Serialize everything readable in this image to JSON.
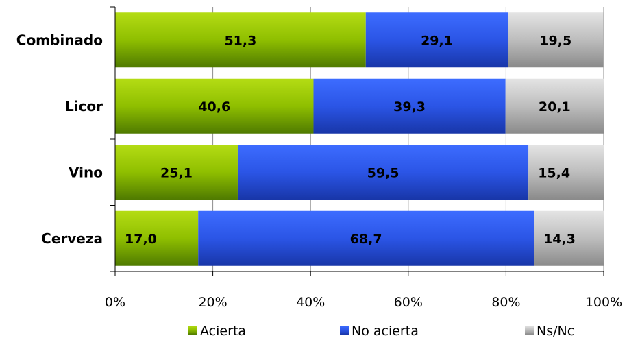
{
  "chart_data": {
    "type": "bar",
    "orientation": "horizontal",
    "stacked": true,
    "categories": [
      "Combinado",
      "Licor",
      "Vino",
      "Cerveza"
    ],
    "series": [
      {
        "name": "Acierta",
        "values": [
          51.3,
          40.6,
          25.1,
          17.0
        ],
        "labels": [
          "51,3",
          "40,6",
          "25,1",
          "17,0"
        ],
        "color": "#8fbf00"
      },
      {
        "name": "No acierta",
        "values": [
          29.1,
          39.3,
          59.5,
          68.7
        ],
        "labels": [
          "29,1",
          "39,3",
          "59,5",
          "68,7"
        ],
        "color": "#2b55e6"
      },
      {
        "name": "Ns/Nc",
        "values": [
          19.5,
          20.1,
          15.4,
          14.3
        ],
        "labels": [
          "19,5",
          "20,1",
          "15,4",
          "14,3"
        ],
        "color": "#bdbdbd"
      }
    ],
    "xlim": [
      0,
      100
    ],
    "x_ticks": [
      "0%",
      "20%",
      "40%",
      "60%",
      "80%",
      "100%"
    ],
    "grid": true,
    "legend": "bottom"
  }
}
